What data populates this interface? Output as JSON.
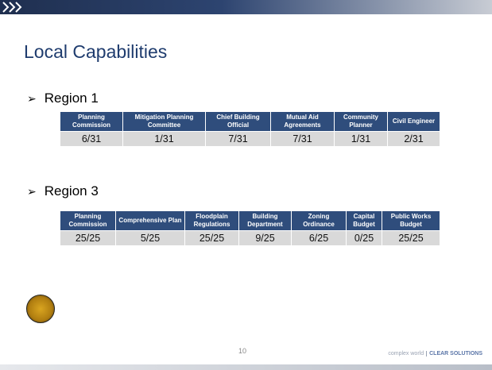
{
  "slide": {
    "title": "Local Capabilities",
    "sections": [
      {
        "heading": "Region 1",
        "columns": [
          "Planning Commission",
          "Mitigation Planning Committee",
          "Chief Building Official",
          "Mutual Aid Agreements",
          "Community Planner",
          "Civil Engineer"
        ],
        "values": [
          "6/31",
          "1/31",
          "7/31",
          "7/31",
          "1/31",
          "2/31"
        ]
      },
      {
        "heading": "Region 3",
        "columns": [
          "Planning Commission",
          "Comprehensive Plan",
          "Floodplain Regulations",
          "Building Department",
          "Zoning Ordinance",
          "Capital Budget",
          "Public Works Budget"
        ],
        "values": [
          "25/25",
          "5/25",
          "25/25",
          "9/25",
          "6/25",
          "0/25",
          "25/25"
        ]
      }
    ],
    "page_number": "10",
    "footer": {
      "tagline": "complex world",
      "brand": "CLEAR SOLUTIONS"
    }
  }
}
